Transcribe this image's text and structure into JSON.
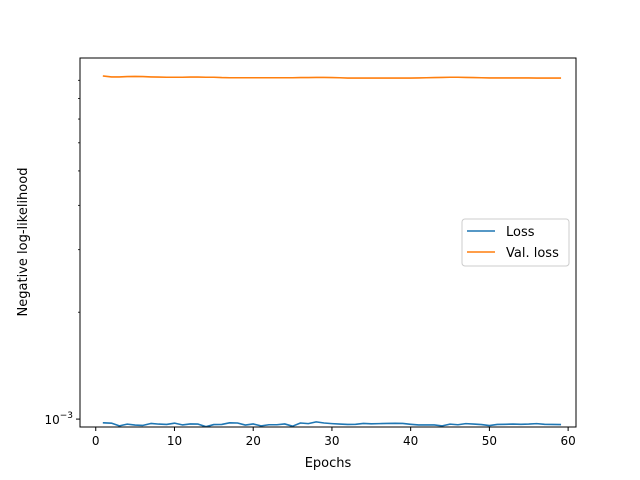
{
  "chart_data": {
    "type": "line",
    "title": "",
    "xlabel": "Epochs",
    "ylabel": "Negative log-likelihood",
    "xlim": [
      -2.0,
      61.0
    ],
    "ylim": [
      0.00095,
      0.0104
    ],
    "yscale": "log",
    "xticks": [
      0,
      10,
      20,
      30,
      40,
      50,
      60
    ],
    "yticks": [
      {
        "value": 0.001,
        "label_base": "10",
        "label_exp": "−3"
      }
    ],
    "grid": false,
    "legend_position": "center-right",
    "series": [
      {
        "name": "Loss",
        "color": "#1f77b4",
        "x": [
          1,
          2,
          3,
          4,
          5,
          6,
          7,
          8,
          9,
          10,
          11,
          12,
          13,
          14,
          15,
          16,
          17,
          18,
          19,
          20,
          21,
          22,
          23,
          24,
          25,
          26,
          27,
          28,
          29,
          30,
          31,
          32,
          33,
          34,
          35,
          36,
          37,
          38,
          39,
          40,
          41,
          42,
          43,
          44,
          45,
          46,
          47,
          48,
          49,
          50,
          51,
          52,
          53,
          54,
          55,
          56,
          57,
          58,
          59
        ],
        "values": [
          0.000976,
          0.000974,
          0.000957,
          0.000968,
          0.000962,
          0.00096,
          0.000972,
          0.000968,
          0.000966,
          0.000974,
          0.000963,
          0.000969,
          0.000968,
          0.000952,
          0.000965,
          0.000966,
          0.000976,
          0.000975,
          0.000962,
          0.000969,
          0.000957,
          0.000964,
          0.000964,
          0.000969,
          0.000955,
          0.000975,
          0.000971,
          0.000982,
          0.000975,
          0.000971,
          0.000968,
          0.000966,
          0.000967,
          0.000972,
          0.00097,
          0.000971,
          0.000972,
          0.000973,
          0.000972,
          0.000967,
          0.000963,
          0.000963,
          0.000963,
          0.000957,
          0.000968,
          0.000964,
          0.000971,
          0.000968,
          0.000965,
          0.000959,
          0.000966,
          0.000967,
          0.000968,
          0.000967,
          0.000968,
          0.000971,
          0.000967,
          0.000966,
          0.000965
        ]
      },
      {
        "name": "Val. loss",
        "color": "#ff7f0e",
        "x": [
          1,
          2,
          3,
          4,
          5,
          6,
          7,
          8,
          9,
          10,
          11,
          12,
          13,
          14,
          15,
          16,
          17,
          18,
          19,
          20,
          21,
          22,
          23,
          24,
          25,
          26,
          27,
          28,
          29,
          30,
          31,
          32,
          33,
          34,
          35,
          36,
          37,
          38,
          39,
          40,
          41,
          42,
          43,
          44,
          45,
          46,
          47,
          48,
          49,
          50,
          51,
          52,
          53,
          54,
          55,
          56,
          57,
          58,
          59
        ],
        "values": [
          0.00925,
          0.0092,
          0.0092,
          0.00922,
          0.00923,
          0.00922,
          0.0092,
          0.00919,
          0.00918,
          0.00918,
          0.00918,
          0.00919,
          0.00919,
          0.00918,
          0.00918,
          0.00916,
          0.00915,
          0.00915,
          0.00915,
          0.00915,
          0.00915,
          0.00915,
          0.00915,
          0.00915,
          0.00915,
          0.00916,
          0.00916,
          0.00917,
          0.00917,
          0.00916,
          0.00915,
          0.00913,
          0.00913,
          0.00913,
          0.00913,
          0.00913,
          0.00913,
          0.00913,
          0.00913,
          0.00913,
          0.00914,
          0.00915,
          0.00916,
          0.00917,
          0.00918,
          0.00918,
          0.00917,
          0.00916,
          0.00915,
          0.00914,
          0.00914,
          0.00914,
          0.00914,
          0.00914,
          0.00914,
          0.00913,
          0.00913,
          0.00913,
          0.00913
        ]
      }
    ]
  }
}
